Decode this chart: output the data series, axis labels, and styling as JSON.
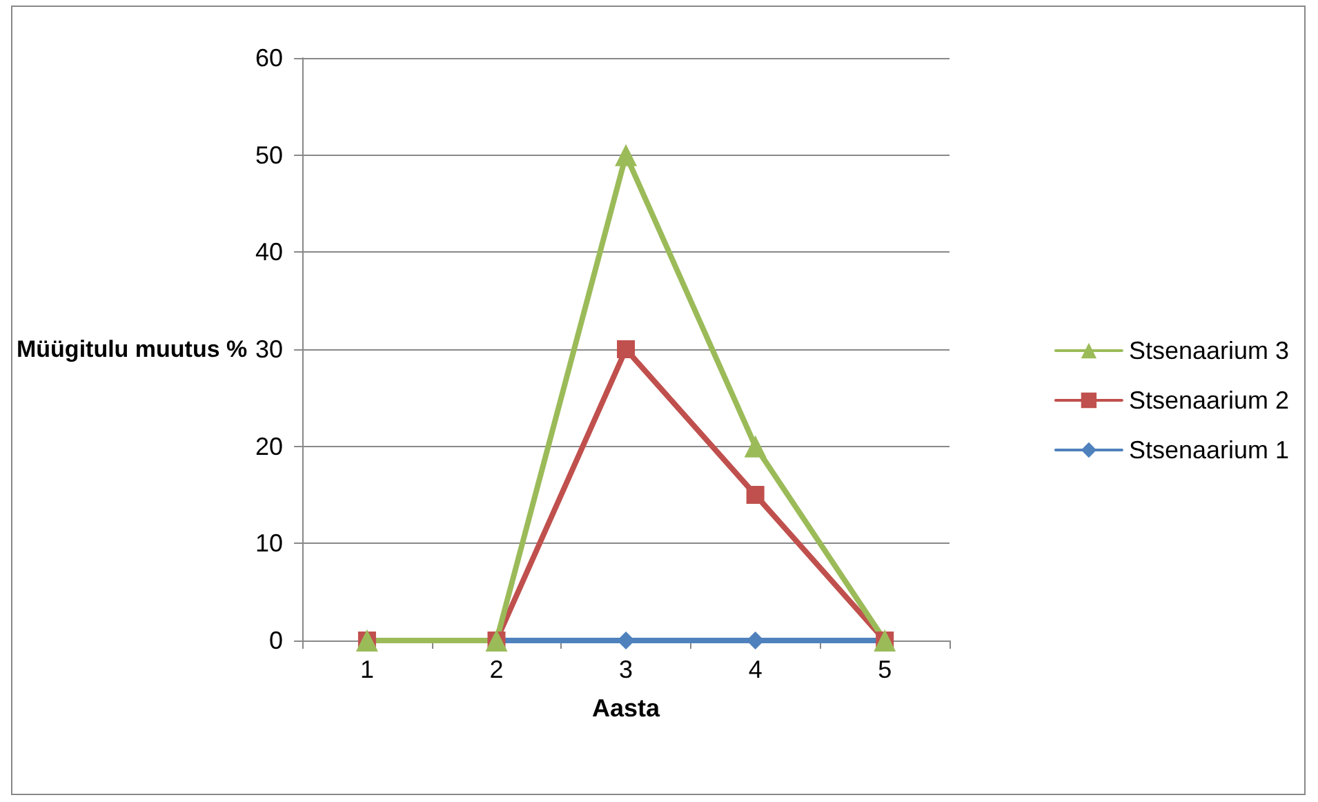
{
  "chart_data": {
    "type": "line",
    "xlabel": "Aasta",
    "ylabel": "Müügitulu muutus %",
    "categories": [
      "1",
      "2",
      "3",
      "4",
      "5"
    ],
    "series": [
      {
        "name": "Stsenaarium 1",
        "color": "#4f81bd",
        "marker": "diamond",
        "values": [
          0,
          0,
          0,
          0,
          0
        ]
      },
      {
        "name": "Stsenaarium 2",
        "color": "#c0504d",
        "marker": "square",
        "values": [
          0,
          0,
          30,
          15,
          0
        ]
      },
      {
        "name": "Stsenaarium 3",
        "color": "#9bbb59",
        "marker": "triangle",
        "values": [
          0,
          0,
          50,
          20,
          0
        ]
      }
    ],
    "ylim": [
      0,
      60
    ],
    "yticks": [
      0,
      10,
      20,
      30,
      40,
      50,
      60
    ],
    "grid": "y",
    "legend": "right",
    "line_style": "solid"
  }
}
